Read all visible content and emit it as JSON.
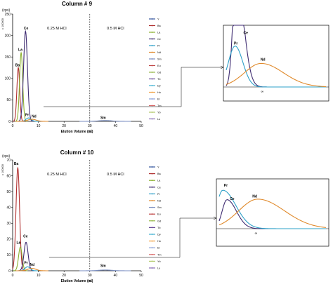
{
  "chart_data": [
    {
      "type": "line",
      "title": "Column  # 9",
      "xlabel": "Elution Volume (㏖)",
      "ylabel_unit": "(cps)",
      "ylabel_scale": "x 100000",
      "xlim": [
        0,
        50
      ],
      "ylim": [
        0,
        250
      ],
      "xticks": [
        "0",
        "10",
        "20",
        "30",
        "40",
        "50"
      ],
      "yticks": [
        "0",
        "50",
        "100",
        "150",
        "200",
        "250"
      ],
      "divider_x": 30,
      "regions": [
        "0.25 M HCl",
        "0.5 M HCl"
      ],
      "legend_position": "right",
      "series": [
        {
          "name": "Y",
          "color": "#3a5ba0",
          "peak_x": 0,
          "peak_y": 0,
          "width": 1
        },
        {
          "name": "Ba",
          "color": "#b03030",
          "peak_x": 2.2,
          "peak_y": 125,
          "width": 0.55
        },
        {
          "name": "La",
          "color": "#8cb030",
          "peak_x": 3.3,
          "peak_y": 160,
          "width": 0.6
        },
        {
          "name": "Ce",
          "color": "#3d2a70",
          "peak_x": 5.0,
          "peak_y": 210,
          "width": 0.75
        },
        {
          "name": "Pr",
          "color": "#2ea0c8",
          "peak_x": 6.2,
          "peak_y": 8,
          "width": 1.0
        },
        {
          "name": "Nd",
          "color": "#e08a2c",
          "peak_x": 7.5,
          "peak_y": 5,
          "width": 1.6
        },
        {
          "name": "Sm",
          "color": "#7a8ec0",
          "peak_x": 36,
          "peak_y": 2,
          "width": 2.5
        },
        {
          "name": "Eu",
          "color": "#c04848"
        },
        {
          "name": "Gd",
          "color": "#96b848"
        },
        {
          "name": "Tb",
          "color": "#6a4c9a"
        },
        {
          "name": "Dy",
          "color": "#40b0d0"
        },
        {
          "name": "Ho",
          "color": "#f0a040"
        },
        {
          "name": "Er",
          "color": "#8aa0d8"
        },
        {
          "name": "Tm",
          "color": "#d86868"
        },
        {
          "name": "Yb",
          "color": "#b0c868"
        },
        {
          "name": "Lu",
          "color": "#8a70b8"
        }
      ],
      "peak_labels": [
        {
          "text": "Ba",
          "x": 1.9,
          "y": 128
        },
        {
          "text": "La",
          "x": 3.0,
          "y": 164
        },
        {
          "text": "Ce",
          "x": 5.2,
          "y": 214
        },
        {
          "text": "Pr",
          "x": 5.6,
          "y": 12
        },
        {
          "text": "Nd",
          "x": 8.3,
          "y": 9
        },
        {
          "text": "Sm",
          "x": 35.2,
          "y": 6
        }
      ],
      "inset": {
        "labels": [
          {
            "text": "Ce",
            "x": 3.1,
            "y": 11.2
          },
          {
            "text": "Pr",
            "x": 1.4,
            "y": 9.0
          },
          {
            "text": "Nd",
            "x": 6.2,
            "y": 5.6
          }
        ],
        "tick": "∞"
      }
    },
    {
      "type": "line",
      "title": "Column  # 10",
      "xlabel": "Elution Volume (㏖)",
      "ylabel_unit": "(cps)",
      "ylabel_scale": "x 100000",
      "xlim": [
        0,
        50
      ],
      "ylim": [
        0,
        70
      ],
      "xticks": [
        "0",
        "10",
        "20",
        "30",
        "40",
        "50"
      ],
      "yticks": [
        "0",
        "10",
        "20",
        "30",
        "40",
        "50",
        "60",
        "70"
      ],
      "divider_x": 30,
      "regions": [
        "0.25 M HCl",
        "0.5 M HCl"
      ],
      "legend_position": "right",
      "series": [
        {
          "name": "Y",
          "color": "#3a5ba0",
          "peak_x": 0,
          "peak_y": 0,
          "width": 1
        },
        {
          "name": "Ba",
          "color": "#b03030",
          "peak_x": 2.0,
          "peak_y": 65,
          "width": 0.7
        },
        {
          "name": "La",
          "color": "#8cb030",
          "peak_x": 3.0,
          "peak_y": 15,
          "width": 0.7
        },
        {
          "name": "Ce",
          "color": "#3d2a70",
          "peak_x": 5.2,
          "peak_y": 18,
          "width": 0.8
        },
        {
          "name": "Pr",
          "color": "#2ea0c8",
          "peak_x": 5.8,
          "peak_y": 2.5,
          "width": 1.0
        },
        {
          "name": "Nd",
          "color": "#e08a2c",
          "peak_x": 7.5,
          "peak_y": 1.5,
          "width": 1.6
        },
        {
          "name": "Sm",
          "color": "#7a8ec0",
          "peak_x": 36,
          "peak_y": 0.5,
          "width": 2.5
        },
        {
          "name": "Eu",
          "color": "#c04848"
        },
        {
          "name": "Gd",
          "color": "#96b848"
        },
        {
          "name": "Tb",
          "color": "#6a4c9a"
        },
        {
          "name": "Dy",
          "color": "#40b0d0"
        },
        {
          "name": "Ho",
          "color": "#f0a040"
        },
        {
          "name": "Er",
          "color": "#8aa0d8"
        },
        {
          "name": "Tm",
          "color": "#d86868"
        },
        {
          "name": "Yb",
          "color": "#b0c868"
        },
        {
          "name": "Lu",
          "color": "#8a70b8"
        }
      ],
      "peak_labels": [
        {
          "text": "Ba",
          "x": 1.4,
          "y": 67
        },
        {
          "text": "La",
          "x": 2.3,
          "y": 17
        },
        {
          "text": "Ce",
          "x": 5.0,
          "y": 21
        },
        {
          "text": "Pr",
          "x": 5.2,
          "y": 4.2
        },
        {
          "text": "Nd",
          "x": 7.6,
          "y": 3.2
        },
        {
          "text": "Sm",
          "x": 35.2,
          "y": 2.5
        }
      ],
      "inset": {
        "labels": [
          {
            "text": "Pr",
            "x": 0.8,
            "y": 9.4
          },
          {
            "text": "Ce",
            "x": 1.8,
            "y": 6.4
          },
          {
            "text": "Nd",
            "x": 5.6,
            "y": 7.0
          }
        ],
        "tick": "∞"
      }
    }
  ]
}
